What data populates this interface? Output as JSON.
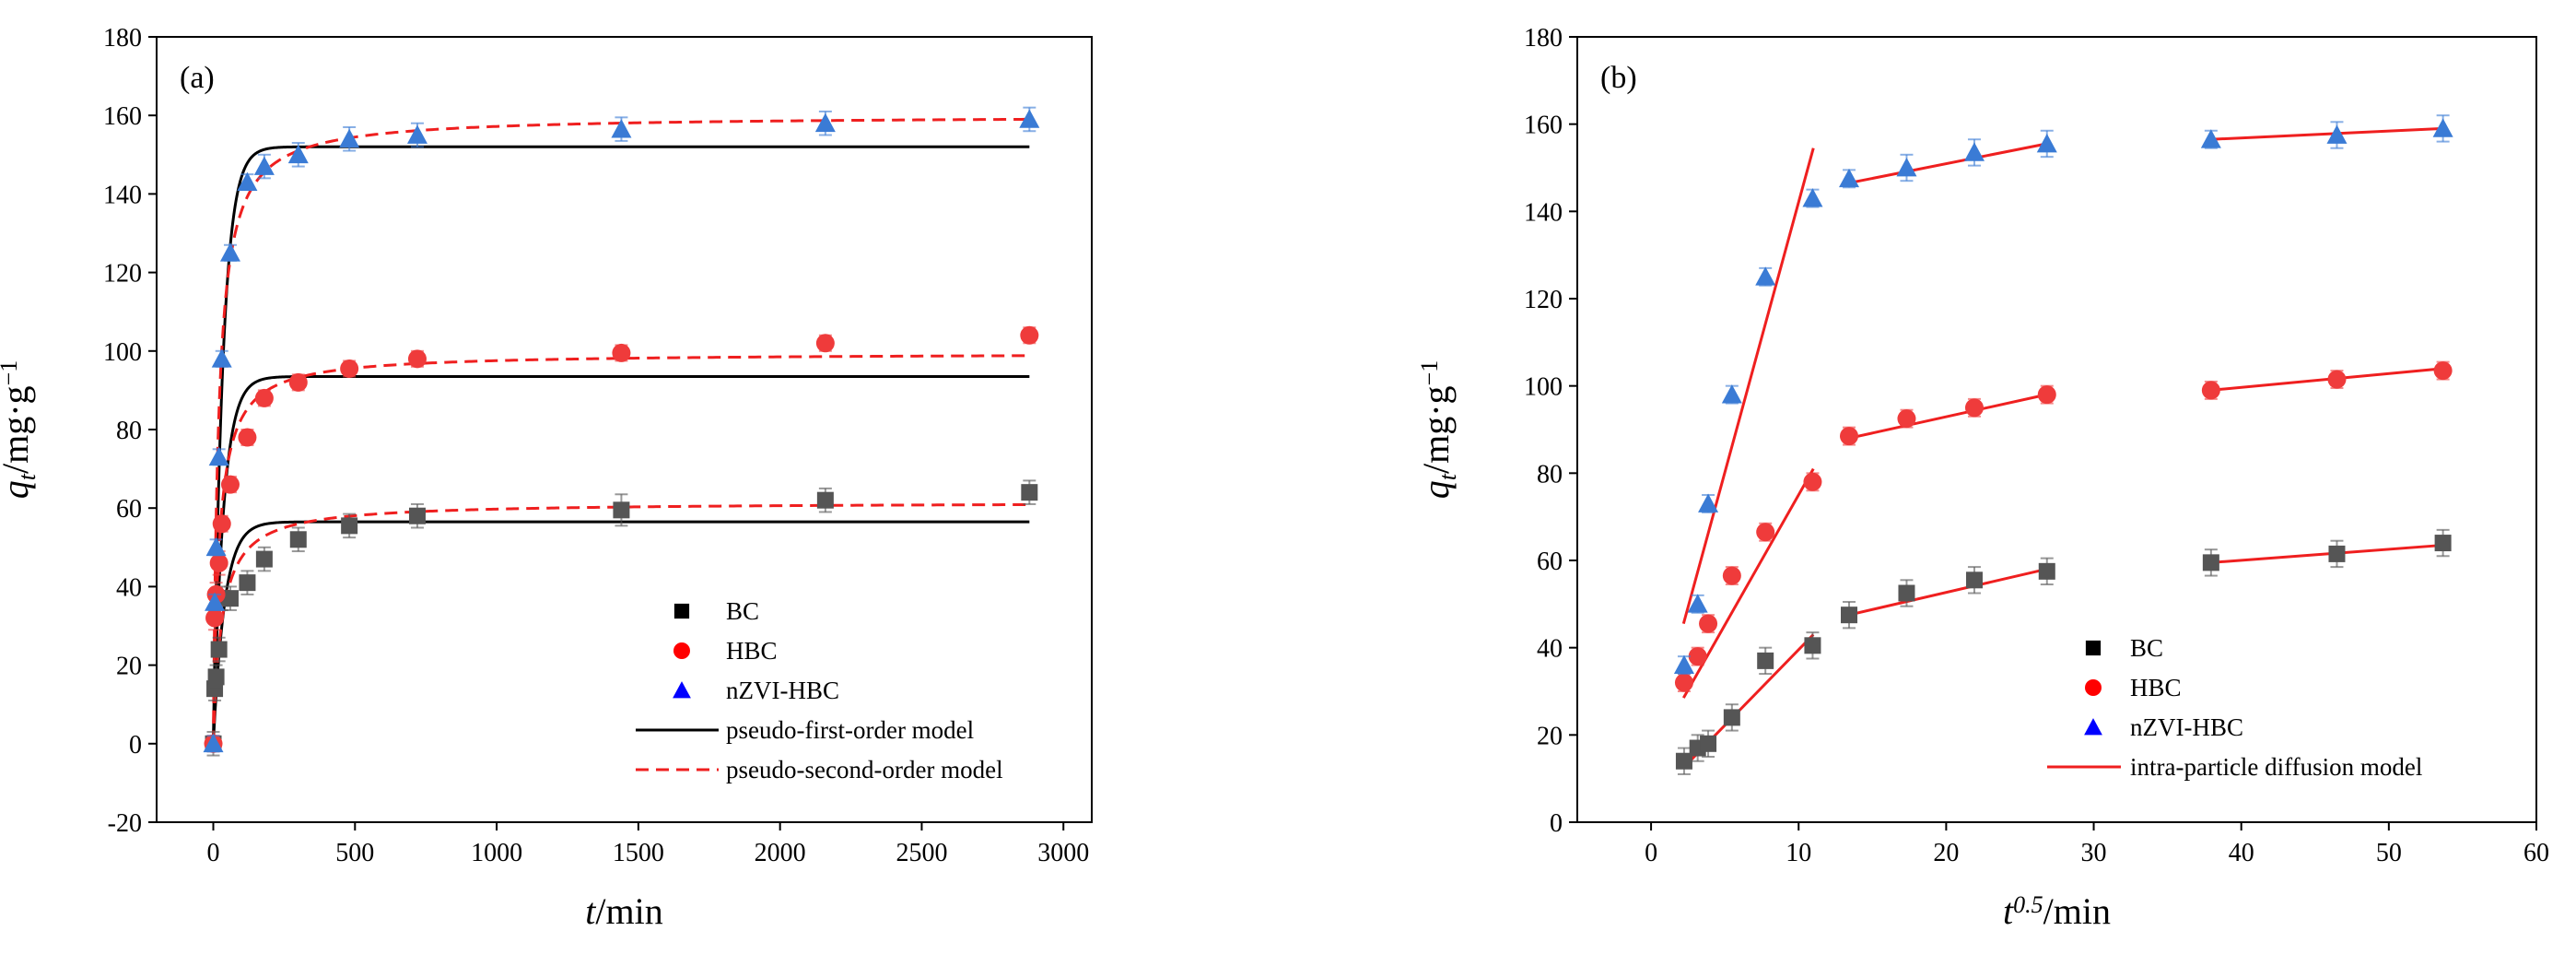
{
  "chart_data": [
    {
      "type": "scatter",
      "panel_label": "(a)",
      "xlabel": {
        "italic": "t",
        "rest": "/min"
      },
      "ylabel": {
        "italic": "q",
        "sub": "t",
        "rest": "/mg·g",
        "sup": "−1"
      },
      "xlim": [
        -200,
        3100
      ],
      "ylim": [
        -20,
        180
      ],
      "xticks": [
        0,
        500,
        1000,
        1500,
        2000,
        2500,
        3000
      ],
      "yticks": [
        -20,
        0,
        20,
        40,
        60,
        80,
        100,
        120,
        140,
        160,
        180
      ],
      "x": [
        0,
        5,
        10,
        20,
        30,
        60,
        120,
        180,
        300,
        480,
        720,
        1440,
        2160,
        2880
      ],
      "series": [
        {
          "name": "BC",
          "marker": "square",
          "color": "#555555",
          "values": [
            0,
            14,
            17,
            24,
            37,
            37,
            41,
            47,
            52,
            55.5,
            58,
            59.5,
            62,
            64
          ],
          "err": [
            3,
            3,
            3,
            3,
            3,
            3,
            3,
            3,
            3,
            3,
            3,
            4,
            3,
            3
          ]
        },
        {
          "name": "HBC",
          "marker": "circle",
          "color": "#ef3b3b",
          "values": [
            0,
            32,
            38,
            46,
            56,
            66,
            78,
            88,
            92,
            95.5,
            98,
            99.5,
            102,
            104
          ],
          "err": [
            2,
            3,
            3,
            3,
            2,
            2,
            2,
            2,
            2,
            2,
            2,
            2,
            2,
            2
          ]
        },
        {
          "name": "nZVI-HBC",
          "marker": "triangle",
          "color": "#3a7bd5",
          "values": [
            0,
            36,
            50,
            73,
            98,
            125,
            143,
            147,
            150,
            154,
            155,
            156.5,
            158,
            159
          ],
          "err": [
            2,
            2,
            2,
            2,
            2,
            2,
            2,
            3,
            3,
            3,
            3,
            3,
            3,
            3
          ]
        }
      ],
      "models": [
        {
          "name": "pseudo-first-order model",
          "kind": "pfo",
          "style": "solid",
          "color": "#000000",
          "params": [
            {
              "qe": 56.5,
              "k": 0.025
            },
            {
              "qe": 93.5,
              "k": 0.028
            },
            {
              "qe": 152,
              "k": 0.03
            }
          ]
        },
        {
          "name": "pseudo-second-order model",
          "kind": "pso",
          "style": "dashed",
          "color": "#ef1f1f",
          "params": [
            {
              "qe": 61.5,
              "k": 0.00055
            },
            {
              "qe": 99.5,
              "k": 0.0005
            },
            {
              "qe": 160,
              "k": 0.00035
            }
          ]
        }
      ],
      "legend": {
        "position": "bottom-right",
        "entries": [
          "BC",
          "HBC",
          "nZVI-HBC",
          "pseudo-first-order model",
          "pseudo-second-order model"
        ]
      }
    },
    {
      "type": "scatter",
      "panel_label": "(b)",
      "xlabel": {
        "italic": "t",
        "sup": "0.5",
        "rest": "/min"
      },
      "ylabel": {
        "italic": "q",
        "sub": "t",
        "rest": "/mg·g",
        "sup": "−1"
      },
      "xlim": [
        -5,
        60
      ],
      "ylim": [
        0,
        180
      ],
      "xticks": [
        0,
        10,
        20,
        30,
        40,
        50,
        60
      ],
      "yticks": [
        0,
        20,
        40,
        60,
        80,
        100,
        120,
        140,
        160,
        180
      ],
      "x": [
        2.24,
        3.16,
        3.87,
        5.48,
        7.75,
        10.95,
        13.42,
        17.32,
        21.91,
        26.83,
        37.95,
        46.48,
        53.67
      ],
      "series": [
        {
          "name": "BC",
          "marker": "square",
          "color": "#555555",
          "values": [
            14,
            17,
            18,
            24,
            37,
            40.5,
            47.5,
            52.5,
            55.5,
            57.5,
            59.5,
            61.5,
            64
          ],
          "err": [
            3,
            3,
            3,
            3,
            3,
            3,
            3,
            3,
            3,
            3,
            3,
            3,
            3
          ]
        },
        {
          "name": "HBC",
          "marker": "circle",
          "color": "#ef3b3b",
          "values": [
            32,
            38,
            45.5,
            56.5,
            66.5,
            78,
            88.5,
            92.5,
            95,
            98,
            99,
            101.5,
            103.5
          ],
          "err": [
            2,
            2,
            2,
            2,
            2,
            2,
            2,
            2,
            2,
            2,
            2,
            2,
            2
          ]
        },
        {
          "name": "nZVI-HBC",
          "marker": "triangle",
          "color": "#3a7bd5",
          "values": [
            36,
            50,
            73,
            98,
            125,
            143,
            147.5,
            150,
            153.5,
            155.5,
            156.5,
            157.5,
            159
          ],
          "err": [
            2,
            2,
            2,
            2,
            2,
            2,
            2,
            3,
            3,
            3,
            2,
            3,
            3
          ]
        }
      ],
      "fit_lines": [
        {
          "name": "intra-particle diffusion model",
          "x": [
            2.2,
            11.0
          ],
          "y": [
            12.5,
            43
          ]
        },
        {
          "name": "intra-particle diffusion model",
          "x": [
            13.4,
            26.8
          ],
          "y": [
            47.5,
            58
          ]
        },
        {
          "name": "intra-particle diffusion model",
          "x": [
            37.9,
            53.7
          ],
          "y": [
            59.5,
            63.5
          ]
        },
        {
          "name": "intra-particle diffusion model",
          "x": [
            2.2,
            11.0
          ],
          "y": [
            28.5,
            81
          ]
        },
        {
          "name": "intra-particle diffusion model",
          "x": [
            13.4,
            26.8
          ],
          "y": [
            88,
            98
          ]
        },
        {
          "name": "intra-particle diffusion model",
          "x": [
            37.9,
            53.7
          ],
          "y": [
            99,
            104
          ]
        },
        {
          "name": "intra-particle diffusion model",
          "x": [
            2.2,
            11.0
          ],
          "y": [
            45.5,
            154.5
          ]
        },
        {
          "name": "intra-particle diffusion model",
          "x": [
            13.4,
            26.8
          ],
          "y": [
            146.5,
            155.5
          ]
        },
        {
          "name": "intra-particle diffusion model",
          "x": [
            37.9,
            53.7
          ],
          "y": [
            156.5,
            159
          ]
        }
      ],
      "line_color": "#ef1f1f",
      "legend": {
        "position": "bottom-right",
        "entries": [
          "BC",
          "HBC",
          "nZVI-HBC",
          "intra-particle diffusion model"
        ]
      }
    }
  ]
}
